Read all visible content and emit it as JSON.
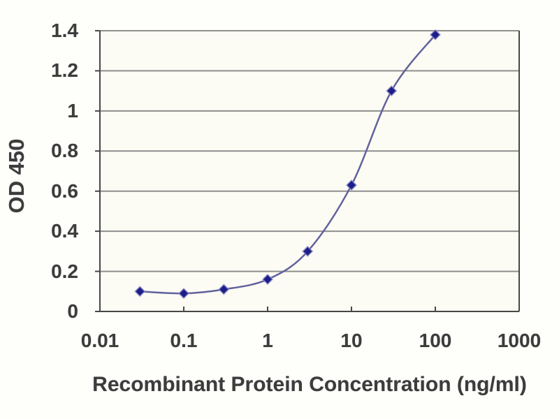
{
  "figure": {
    "background": "#fefefb",
    "plot_background": "#fcfcf4",
    "grid_color": "#8e8e8e",
    "frame_color": "#474747",
    "line_color": "#62629e",
    "marker_color": "#1e1e8a",
    "marker_halo_color": "#9a9ad2",
    "text_color": "#3c3c3c"
  },
  "chart_data": {
    "type": "line",
    "title": "",
    "xlabel": "Recombinant Protein Concentration (ng/ml)",
    "ylabel": "OD 450",
    "x_scale": "log",
    "xlim": [
      0.01,
      1000
    ],
    "ylim": [
      0,
      1.4
    ],
    "xtick_values": [
      0.01,
      0.1,
      1,
      10,
      100,
      1000
    ],
    "xtick_labels": [
      "0.01",
      "0.1",
      "1",
      "10",
      "100",
      "1000"
    ],
    "ytick_values": [
      0,
      0.2,
      0.4,
      0.6,
      0.8,
      1,
      1.2,
      1.4
    ],
    "ytick_labels": [
      "0",
      "0.2",
      "0.4",
      "0.6",
      "0.8",
      "1",
      "1.2",
      "1.4"
    ],
    "grid": "horizontal",
    "legend": "none",
    "series": [
      {
        "name": "OD450",
        "marker": "diamond",
        "smoothed": true,
        "x": [
          0.03,
          0.1,
          0.3,
          1,
          3,
          10,
          30,
          100
        ],
        "y": [
          0.1,
          0.09,
          0.11,
          0.16,
          0.3,
          0.63,
          1.1,
          1.38
        ]
      }
    ]
  }
}
